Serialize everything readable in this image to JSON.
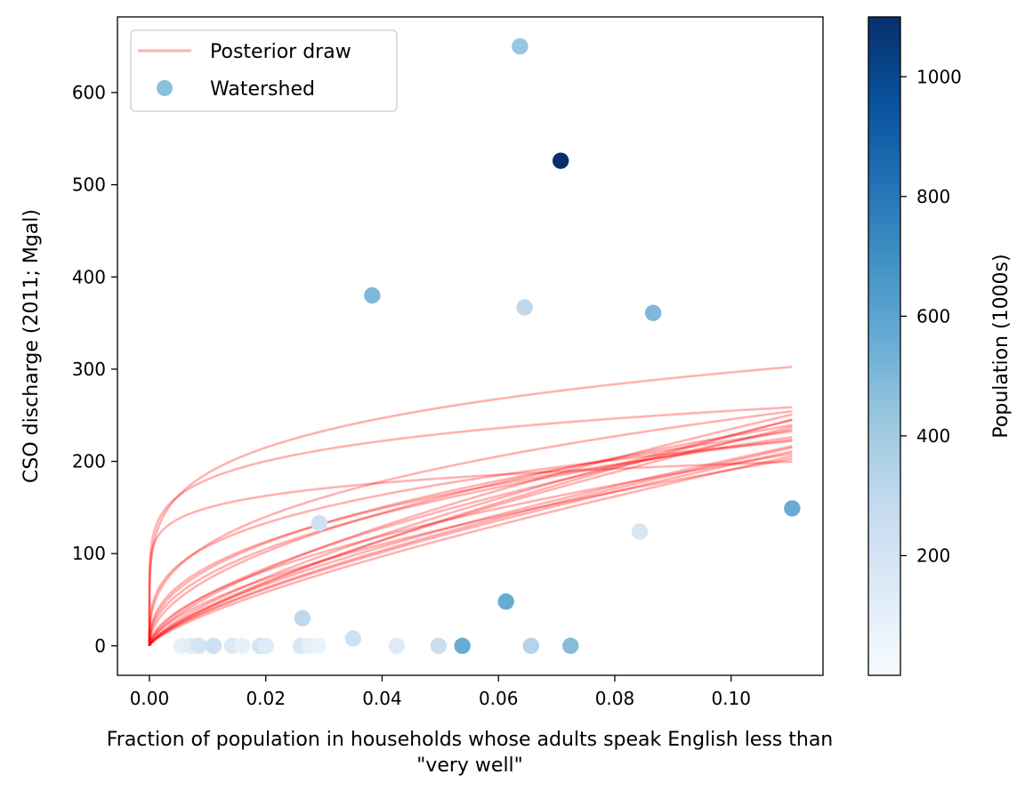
{
  "chart_data": {
    "type": "scatter",
    "xlabel": "Fraction of population in households whose adults speak English less than\n\"very well\"",
    "ylabel": "CSO discharge (2011; Mgal)",
    "xlim": [
      -0.0055,
      0.1158
    ],
    "ylim": [
      -32,
      682
    ],
    "xticks": [
      0.0,
      0.02,
      0.04,
      0.06,
      0.08,
      0.1
    ],
    "xtick_labels": [
      "0.00",
      "0.02",
      "0.04",
      "0.06",
      "0.08",
      "0.10"
    ],
    "yticks": [
      0,
      100,
      200,
      300,
      400,
      500,
      600
    ],
    "ytick_labels": [
      "0",
      "100",
      "200",
      "300",
      "400",
      "500",
      "600"
    ],
    "grid": false,
    "legend": {
      "placement": "top-left",
      "entries": [
        {
          "label": "Posterior draw",
          "kind": "line",
          "color": "#ff0000",
          "alpha": 0.3
        },
        {
          "label": "Watershed",
          "kind": "marker",
          "color": "#8bc0dd"
        }
      ]
    },
    "colorbar": {
      "label": "Population (1000s)",
      "colormap": "Blues",
      "range": [
        0,
        1100
      ],
      "ticks": [
        200,
        400,
        600,
        800,
        1000
      ],
      "tick_labels": [
        "200",
        "400",
        "600",
        "800",
        "1000"
      ],
      "stops": [
        "#f7fbff",
        "#deebf7",
        "#c6dbef",
        "#9ecae1",
        "#6baed6",
        "#4292c6",
        "#2171b5",
        "#08519c",
        "#08306b"
      ]
    },
    "scatter_points": [
      {
        "x": 0.0637,
        "y": 650,
        "population": 430
      },
      {
        "x": 0.0707,
        "y": 526,
        "population": 1100
      },
      {
        "x": 0.0383,
        "y": 380,
        "population": 500
      },
      {
        "x": 0.0645,
        "y": 367,
        "population": 300
      },
      {
        "x": 0.0866,
        "y": 361,
        "population": 500
      },
      {
        "x": 0.1105,
        "y": 149,
        "population": 560
      },
      {
        "x": 0.0843,
        "y": 124,
        "population": 180
      },
      {
        "x": 0.0292,
        "y": 133,
        "population": 220
      },
      {
        "x": 0.0613,
        "y": 48,
        "population": 560
      },
      {
        "x": 0.0263,
        "y": 30,
        "population": 300
      },
      {
        "x": 0.035,
        "y": 8,
        "population": 230
      },
      {
        "x": 0.0055,
        "y": 0,
        "population": 90
      },
      {
        "x": 0.0072,
        "y": 0,
        "population": 120
      },
      {
        "x": 0.0085,
        "y": 0,
        "population": 200
      },
      {
        "x": 0.011,
        "y": 0,
        "population": 230
      },
      {
        "x": 0.0142,
        "y": 0,
        "population": 150
      },
      {
        "x": 0.016,
        "y": 0,
        "population": 90
      },
      {
        "x": 0.019,
        "y": 0,
        "population": 200
      },
      {
        "x": 0.02,
        "y": 0,
        "population": 130
      },
      {
        "x": 0.026,
        "y": 0,
        "population": 170
      },
      {
        "x": 0.0275,
        "y": 0,
        "population": 100
      },
      {
        "x": 0.029,
        "y": 0,
        "population": 80
      },
      {
        "x": 0.0425,
        "y": 0,
        "population": 140
      },
      {
        "x": 0.0497,
        "y": 0,
        "population": 250
      },
      {
        "x": 0.0538,
        "y": 0,
        "population": 560
      },
      {
        "x": 0.0656,
        "y": 0,
        "population": 330
      },
      {
        "x": 0.0724,
        "y": 0,
        "population": 480
      }
    ],
    "series": [
      {
        "a": 470,
        "b": 0.2,
        "x_max": 0.1105,
        "y0": 0
      },
      {
        "a": 260,
        "b": 0.12,
        "x_max": 0.1105,
        "y0": 0
      },
      {
        "a": 1145,
        "b": 0.7,
        "x_max": 0.1105,
        "y0": 0
      },
      {
        "a": 1050,
        "b": 0.65,
        "x_max": 0.1105,
        "y0": 0
      },
      {
        "a": 1280,
        "b": 0.75,
        "x_max": 0.1105,
        "y0": 0
      },
      {
        "a": 1160,
        "b": 0.72,
        "x_max": 0.1105,
        "y0": 0
      },
      {
        "a": 1050,
        "b": 0.72,
        "x_max": 0.1105,
        "y0": 0
      },
      {
        "a": 1050,
        "b": 0.74,
        "x_max": 0.1105,
        "y0": 0
      },
      {
        "a": 990,
        "b": 0.69,
        "x_max": 0.1105,
        "y0": 0
      },
      {
        "a": 1030,
        "b": 0.72,
        "x_max": 0.1105,
        "y0": 0
      },
      {
        "a": 760,
        "b": 0.6,
        "x_max": 0.1105,
        "y0": 0
      },
      {
        "a": 700,
        "b": 0.55,
        "x_max": 0.1105,
        "y0": 0
      },
      {
        "a": 720,
        "b": 0.5,
        "x_max": 0.1105,
        "y0": 0
      },
      {
        "a": 610,
        "b": 0.45,
        "x_max": 0.1105,
        "y0": 0
      },
      {
        "a": 600,
        "b": 0.43,
        "x_max": 0.1105,
        "y0": 0
      },
      {
        "a": 430,
        "b": 0.3,
        "x_max": 0.1105,
        "y0": 0
      },
      {
        "a": 880,
        "b": 0.6,
        "x_max": 0.1105,
        "y0": 0
      },
      {
        "a": 540,
        "b": 0.4,
        "x_max": 0.1105,
        "y0": 0
      },
      {
        "a": 360,
        "b": 0.15,
        "x_max": 0.1105,
        "y0": 0
      },
      {
        "a": 550,
        "b": 0.35,
        "x_max": 0.1105,
        "y0": 0
      }
    ]
  }
}
